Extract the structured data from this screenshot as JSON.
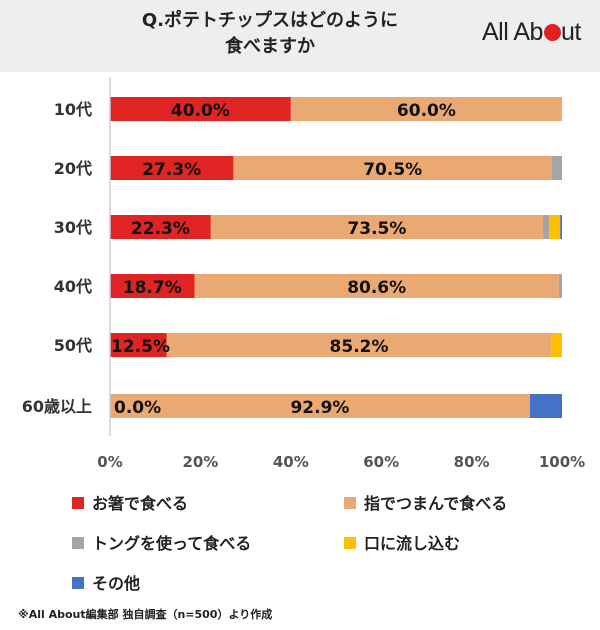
{
  "header": {
    "title_line1": "Q.ポテトチップスはどのように",
    "title_line2": "食べますか",
    "logo_text": "All Ab",
    "logo_text_end": "ut",
    "logo_accent": "#e02020"
  },
  "source_note": "※All About編集部 独自調査（n=500）より作成",
  "chart_data": {
    "type": "bar",
    "orientation": "horizontal",
    "stacked": true,
    "percent": true,
    "title": "Q.ポテトチップスはどのように食べますか",
    "categories": [
      "10代",
      "20代",
      "30代",
      "40代",
      "50代",
      "60歳以上"
    ],
    "xlim": [
      0,
      100
    ],
    "xticks": [
      "0%",
      "20%",
      "40%",
      "60%",
      "80%",
      "100%"
    ],
    "grid": false,
    "legend_position": "bottom",
    "series": [
      {
        "name": "お箸で食べる",
        "color": "#e02323",
        "values": [
          40.0,
          27.3,
          22.3,
          18.7,
          12.5,
          0.0
        ],
        "labels": [
          "40.0%",
          "27.3%",
          "22.3%",
          "18.7%",
          "12.5%",
          "0.0%"
        ]
      },
      {
        "name": "指でつまんで食べる",
        "color": "#eaa873",
        "values": [
          60.0,
          70.5,
          73.5,
          80.6,
          85.2,
          92.9
        ],
        "labels": [
          "60.0%",
          "70.5%",
          "73.5%",
          "80.6%",
          "85.2%",
          "92.9%"
        ]
      },
      {
        "name": "トングを使って食べる",
        "color": "#a5a5a5",
        "values": [
          0.0,
          2.2,
          1.4,
          0.7,
          0.0,
          0.0
        ]
      },
      {
        "name": "口に流し込む",
        "color": "#ffc000",
        "values": [
          0.0,
          0.0,
          2.4,
          0.0,
          2.3,
          0.0
        ]
      },
      {
        "name": "その他",
        "color": "#4472c4",
        "values": [
          0.0,
          0.0,
          0.4,
          0.0,
          0.0,
          7.1
        ]
      }
    ]
  }
}
